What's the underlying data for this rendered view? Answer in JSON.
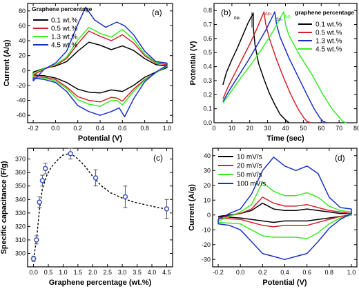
{
  "colors": {
    "black": "#000000",
    "red": "#d6202a",
    "green": "#33ee22",
    "blue": "#1830c8",
    "marker": "#3a54c8"
  },
  "chart_data": [
    {
      "panel": "(a)",
      "type": "line",
      "xlabel": "Potential (V)",
      "ylabel": "Current (A/g)",
      "xlim": [
        -0.25,
        1.05
      ],
      "ylim": [
        -70,
        90
      ],
      "xticks": [
        -0.2,
        0.0,
        0.2,
        0.4,
        0.6,
        0.8,
        1.0
      ],
      "xticklabels": [
        "-0.2",
        "0.0",
        "0.2",
        "0.4",
        "0.6",
        "0.8",
        "1.0"
      ],
      "yticks": [
        -60,
        -40,
        -20,
        0,
        20,
        40,
        60,
        80
      ],
      "yticklabels": [
        "-60",
        "-40",
        "-20",
        "0",
        "20",
        "40",
        "60",
        "80"
      ],
      "legend_title": "Graphene percentage",
      "legend_position": "top-left",
      "series": [
        {
          "name": "0.1 wt.%",
          "color": "#000000",
          "x": [
            -0.2,
            -0.1,
            0,
            0.1,
            0.2,
            0.3,
            0.4,
            0.5,
            0.6,
            0.7,
            0.8,
            0.9,
            1.0,
            1.0,
            0.9,
            0.8,
            0.7,
            0.6,
            0.55,
            0.5,
            0.4,
            0.3,
            0.2,
            0.1,
            0,
            -0.1,
            -0.2,
            -0.2
          ],
          "y": [
            -2,
            3,
            6,
            12,
            26,
            38,
            34,
            28,
            33,
            27,
            16,
            8,
            6,
            4,
            -2,
            -9,
            -20,
            -28,
            -27,
            -26,
            -30,
            -29,
            -25,
            -16,
            -10,
            -7,
            -6,
            -2
          ]
        },
        {
          "name": "0.5 wt.%",
          "color": "#d6202a",
          "x": [
            -0.2,
            -0.1,
            0,
            0.1,
            0.2,
            0.3,
            0.4,
            0.5,
            0.6,
            0.7,
            0.8,
            0.9,
            1.0,
            1.0,
            0.9,
            0.8,
            0.7,
            0.6,
            0.55,
            0.5,
            0.4,
            0.3,
            0.2,
            0.1,
            0,
            -0.1,
            -0.2,
            -0.2
          ],
          "y": [
            -6,
            2,
            7,
            16,
            36,
            53,
            46,
            40,
            48,
            37,
            20,
            10,
            8,
            6,
            -3,
            -12,
            -25,
            -41,
            -37,
            -36,
            -42,
            -40,
            -35,
            -22,
            -12,
            -9,
            -8,
            -6
          ]
        },
        {
          "name": "1.3 wt.%",
          "color": "#33ee22",
          "x": [
            -0.2,
            -0.1,
            0,
            0.1,
            0.2,
            0.3,
            0.4,
            0.5,
            0.6,
            0.7,
            0.8,
            0.9,
            1.0,
            1.0,
            0.9,
            0.8,
            0.7,
            0.6,
            0.55,
            0.5,
            0.4,
            0.3,
            0.2,
            0.1,
            0,
            -0.1,
            -0.2,
            -0.2
          ],
          "y": [
            -4,
            3,
            8,
            18,
            41,
            58,
            50,
            45,
            55,
            42,
            22,
            11,
            9,
            6,
            -3,
            -13,
            -28,
            -46,
            -40,
            -40,
            -48,
            -45,
            -39,
            -24,
            -14,
            -10,
            -9,
            -4
          ]
        },
        {
          "name": "4.5 wt.%",
          "color": "#1830c8",
          "x": [
            -0.2,
            -0.1,
            0,
            0.1,
            0.2,
            0.27,
            0.35,
            0.45,
            0.55,
            0.62,
            0.7,
            0.8,
            0.9,
            1.0,
            1.0,
            0.9,
            0.8,
            0.7,
            0.62,
            0.57,
            0.5,
            0.4,
            0.3,
            0.2,
            0.1,
            0,
            -0.1,
            -0.2,
            -0.2
          ],
          "y": [
            -14,
            2,
            10,
            26,
            62,
            85,
            68,
            58,
            65,
            60,
            48,
            26,
            12,
            10,
            7,
            -2,
            -15,
            -38,
            -62,
            -50,
            -55,
            -60,
            -55,
            -47,
            -28,
            -16,
            -12,
            -10,
            -14
          ]
        }
      ]
    },
    {
      "panel": "(b)",
      "type": "line",
      "xlabel": "Time (sec)",
      "ylabel": "Potential (V)",
      "xlim": [
        0,
        80
      ],
      "ylim": [
        0,
        0.85
      ],
      "xticks": [
        0,
        10,
        20,
        30,
        40,
        50,
        60,
        70,
        80
      ],
      "xticklabels": [
        "0",
        "10",
        "20",
        "30",
        "40",
        "50",
        "60",
        "70",
        "80"
      ],
      "yticks": [
        0,
        0.1,
        0.2,
        0.3,
        0.4,
        0.5,
        0.6,
        0.7,
        0.8
      ],
      "yticklabels": [
        "0.0",
        "0.1",
        "0.2",
        "0.3",
        "0.4",
        "0.5",
        "0.6",
        "0.7",
        "0.8"
      ],
      "legend_title": "graphene percentage",
      "legend_position": "top-right",
      "annotations": [
        "Δφ₁",
        "Δφ₂",
        "Δφ₃",
        "Δφ₄"
      ],
      "series": [
        {
          "name": "0.1 wt.%",
          "color": "#000000",
          "x": [
            5,
            7,
            10,
            13,
            16,
            19,
            22,
            22,
            23,
            25,
            28,
            31,
            34,
            37,
            40,
            42
          ],
          "y": [
            0.27,
            0.36,
            0.45,
            0.53,
            0.62,
            0.71,
            0.78,
            0.68,
            0.55,
            0.42,
            0.31,
            0.21,
            0.13,
            0.06,
            0.02,
            0
          ]
        },
        {
          "name": "0.5 wt.%",
          "color": "#d6202a",
          "x": [
            5,
            8,
            12,
            16,
            20,
            24,
            28,
            29,
            31,
            35,
            39,
            43,
            47,
            50,
            52,
            54
          ],
          "y": [
            0.17,
            0.26,
            0.36,
            0.46,
            0.56,
            0.67,
            0.79,
            0.7,
            0.6,
            0.45,
            0.32,
            0.2,
            0.1,
            0.04,
            0.01,
            0
          ]
        },
        {
          "name": "1.3 wt.%",
          "color": "#1830c8",
          "x": [
            5,
            9,
            14,
            19,
            24,
            29,
            34,
            35,
            37,
            42,
            47,
            52,
            56,
            59,
            61,
            63
          ],
          "y": [
            0.15,
            0.24,
            0.34,
            0.44,
            0.55,
            0.66,
            0.79,
            0.7,
            0.61,
            0.46,
            0.33,
            0.2,
            0.1,
            0.04,
            0.01,
            0
          ]
        },
        {
          "name": "4.5 wt.%",
          "color": "#33ee22",
          "x": [
            5,
            10,
            15,
            21,
            27,
            33,
            39,
            40,
            42,
            48,
            55,
            61,
            66,
            70,
            72,
            74
          ],
          "y": [
            0.14,
            0.23,
            0.32,
            0.42,
            0.53,
            0.65,
            0.79,
            0.7,
            0.62,
            0.48,
            0.34,
            0.2,
            0.1,
            0.04,
            0.01,
            0
          ]
        }
      ]
    },
    {
      "panel": "(c)",
      "type": "scatter",
      "xlabel": "Graphene percentage (wt.%)",
      "ylabel": "Specific capacitance (F/g)",
      "xlim": [
        -0.2,
        4.7
      ],
      "ylim": [
        290,
        378
      ],
      "xticks": [
        0,
        0.5,
        1.0,
        1.5,
        2.0,
        2.5,
        3.0,
        3.5,
        4.0,
        4.5
      ],
      "xticklabels": [
        "0.0",
        "0.5",
        "1.0",
        "1.5",
        "2.0",
        "2.5",
        "3.0",
        "3.5",
        "4.0",
        "4.5"
      ],
      "yticks": [
        300,
        310,
        320,
        330,
        340,
        350,
        360,
        370
      ],
      "yticklabels": [
        "300",
        "310",
        "320",
        "330",
        "340",
        "350",
        "360",
        "370"
      ],
      "points": {
        "x": [
          0.0,
          0.1,
          0.2,
          0.3,
          0.4,
          1.25,
          2.1,
          3.1,
          4.5
        ],
        "y": [
          296,
          310,
          338,
          354,
          363,
          374,
          356,
          342,
          333
        ],
        "err": [
          2,
          3,
          4,
          4,
          4,
          4,
          6,
          8,
          7
        ]
      },
      "trend": {
        "x": [
          0,
          0.1,
          0.2,
          0.3,
          0.45,
          0.6,
          0.8,
          1.0,
          1.2,
          1.4,
          1.6,
          1.8,
          2.0,
          2.3,
          2.6,
          3.0,
          3.4,
          3.8,
          4.2,
          4.5
        ],
        "y": [
          296,
          310,
          332,
          348,
          358,
          364,
          369,
          373,
          374,
          372,
          368,
          363,
          357,
          350,
          345,
          341,
          338,
          336,
          334,
          333
        ]
      }
    },
    {
      "panel": "(d)",
      "type": "line",
      "xlabel": "Potential (V)",
      "ylabel": "Current (A/g)",
      "xlim": [
        -0.25,
        1.05
      ],
      "ylim": [
        -35,
        45
      ],
      "xticks": [
        -0.2,
        0.0,
        0.2,
        0.4,
        0.6,
        0.8,
        1.0
      ],
      "xticklabels": [
        "-0.2",
        "0.0",
        "0.2",
        "0.4",
        "0.6",
        "0.8",
        "1.0"
      ],
      "yticks": [
        -30,
        -20,
        -10,
        0,
        10,
        20,
        30,
        40
      ],
      "yticklabels": [
        "-30",
        "-20",
        "-10",
        "0",
        "10",
        "20",
        "30",
        "40"
      ],
      "legend_position": "top-left",
      "series": [
        {
          "name": "10 mV/s",
          "color": "#000000",
          "x": [
            -0.2,
            0,
            0.1,
            0.2,
            0.3,
            0.4,
            0.5,
            0.6,
            0.7,
            0.8,
            0.9,
            1.0,
            1.0,
            0.9,
            0.8,
            0.7,
            0.6,
            0.5,
            0.4,
            0.3,
            0.2,
            0.1,
            0,
            -0.2,
            -0.2
          ],
          "y": [
            -1,
            1,
            3,
            8,
            4,
            3,
            3,
            4,
            3,
            2,
            1,
            1,
            0,
            -1,
            -2,
            -3,
            -4,
            -4,
            -4,
            -5,
            -4,
            -3,
            -2,
            -1,
            -1
          ]
        },
        {
          "name": "20 mV/s",
          "color": "#d6202a",
          "x": [
            -0.2,
            0,
            0.1,
            0.2,
            0.3,
            0.4,
            0.5,
            0.6,
            0.7,
            0.8,
            0.9,
            1.0,
            1.0,
            0.9,
            0.8,
            0.7,
            0.6,
            0.5,
            0.4,
            0.3,
            0.2,
            0.1,
            0,
            -0.2,
            -0.2
          ],
          "y": [
            -2,
            1,
            4,
            12,
            8,
            6,
            6,
            7,
            5,
            3,
            2,
            1,
            0,
            -1,
            -3,
            -5,
            -7,
            -7,
            -7,
            -8,
            -7,
            -5,
            -3,
            -2,
            -2
          ]
        },
        {
          "name": "50 mV/s",
          "color": "#33ee22",
          "x": [
            -0.2,
            0,
            0.1,
            0.2,
            0.3,
            0.4,
            0.5,
            0.6,
            0.7,
            0.8,
            0.9,
            1.0,
            1.0,
            0.9,
            0.8,
            0.7,
            0.6,
            0.5,
            0.4,
            0.3,
            0.2,
            0.1,
            0,
            -0.2,
            -0.2
          ],
          "y": [
            -4,
            2,
            7,
            22,
            16,
            13,
            13,
            15,
            12,
            6,
            3,
            2,
            0,
            -2,
            -6,
            -12,
            -16,
            -15,
            -15,
            -15,
            -14,
            -10,
            -6,
            -5,
            -4
          ]
        },
        {
          "name": "100 mV/s",
          "color": "#1830c8",
          "x": [
            -0.2,
            -0.1,
            0,
            0.1,
            0.2,
            0.3,
            0.4,
            0.5,
            0.6,
            0.7,
            0.8,
            0.9,
            1.0,
            1.0,
            0.9,
            0.8,
            0.7,
            0.6,
            0.5,
            0.4,
            0.3,
            0.2,
            0.1,
            0,
            -0.1,
            -0.2,
            -0.2
          ],
          "y": [
            -3,
            1,
            4,
            14,
            30,
            39,
            33,
            30,
            33,
            28,
            12,
            5,
            4,
            1,
            -3,
            -9,
            -18,
            -26,
            -28,
            -30,
            -28,
            -26,
            -18,
            -10,
            -7,
            -6,
            -3
          ]
        }
      ]
    }
  ]
}
